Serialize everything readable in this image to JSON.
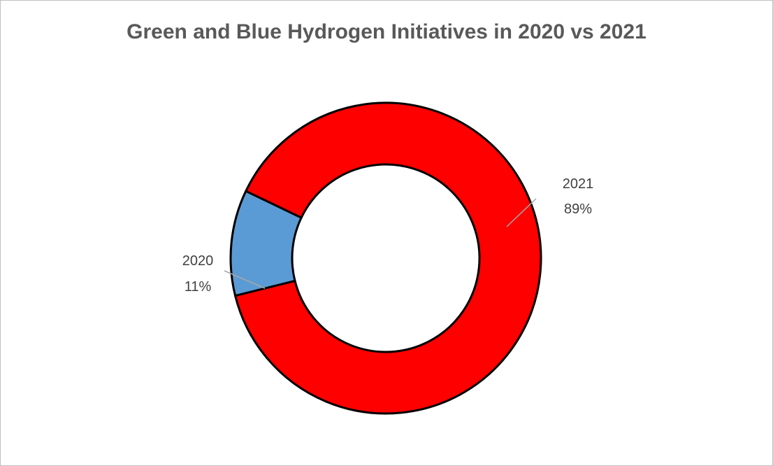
{
  "chart_data": {
    "type": "donut",
    "title": "Green and Blue Hydrogen Initiatives in 2020 vs 2021",
    "categories": [
      "2020",
      "2021"
    ],
    "values": [
      11,
      89
    ],
    "labels": [
      "11%",
      "89%"
    ],
    "colors": [
      "#5b9bd5",
      "#ff0000"
    ],
    "legend": "none"
  }
}
